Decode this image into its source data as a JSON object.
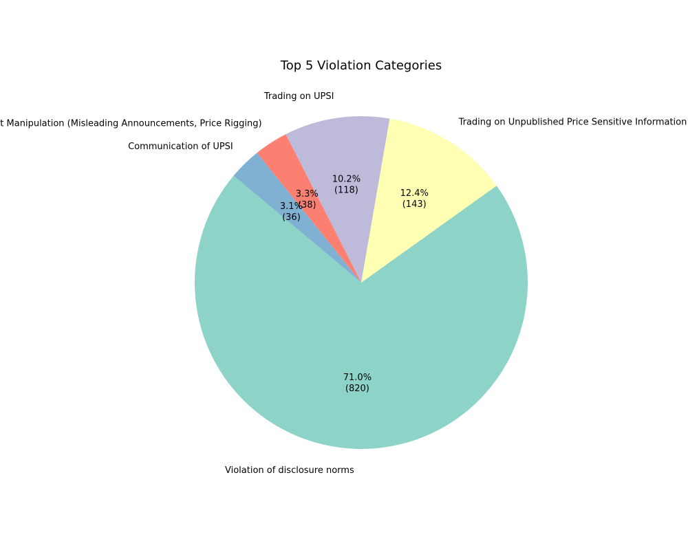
{
  "chart_data": {
    "type": "pie",
    "title": "Top 5 Violation Categories",
    "start_angle_deg": 140,
    "direction": "counterclockwise",
    "slices": [
      {
        "label": "Violation of disclosure norms",
        "value": 820,
        "percent_label": "71.0%",
        "count_label": "(820)",
        "color": "#8dd3c7"
      },
      {
        "label": "Trading on Unpublished Price Sensitive Information",
        "value": 143,
        "percent_label": "12.4%",
        "count_label": "(143)",
        "color": "#ffffb3"
      },
      {
        "label": "Trading on UPSI",
        "value": 118,
        "percent_label": "10.2%",
        "count_label": "(118)",
        "color": "#bebada"
      },
      {
        "label": "Market Manipulation (Misleading Announcements, Price Rigging)",
        "value": 38,
        "percent_label": "3.3%",
        "count_label": "(38)",
        "color": "#fb8072"
      },
      {
        "label": "Communication of UPSI",
        "value": 36,
        "percent_label": "3.1%",
        "count_label": "(36)",
        "color": "#80b1d3"
      }
    ]
  }
}
